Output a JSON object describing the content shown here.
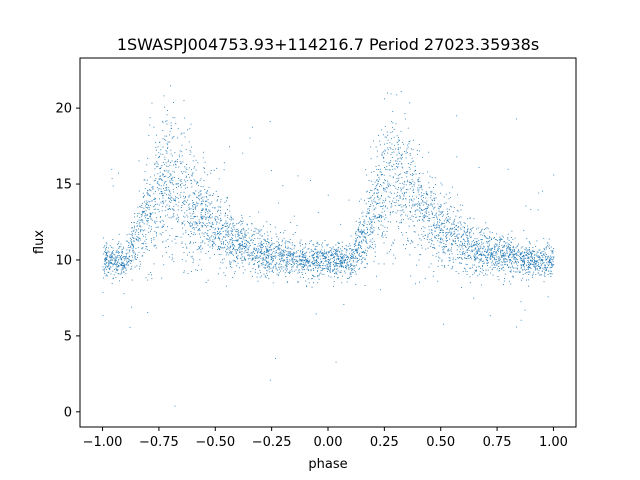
{
  "chart_data": {
    "type": "scatter",
    "title": "1SWASPJ004753.93+114216.7 Period 27023.35938s",
    "xlabel": "phase",
    "ylabel": "flux",
    "xlim": [
      -1.1,
      1.1
    ],
    "ylim": [
      -1.0,
      23.3
    ],
    "xticks": [
      -1.0,
      -0.75,
      -0.5,
      -0.25,
      0.0,
      0.25,
      0.5,
      0.75,
      1.0
    ],
    "xtick_labels": [
      "−1.00",
      "−0.75",
      "−0.50",
      "−0.25",
      "0.00",
      "0.25",
      "0.50",
      "0.75",
      "1.00"
    ],
    "yticks": [
      0,
      5,
      10,
      15,
      20
    ],
    "ytick_labels": [
      "0",
      "5",
      "10",
      "15",
      "20"
    ],
    "grid": false,
    "legend": "none",
    "point_color": "#1f77b4",
    "series": [
      {
        "description_points": "phase-folded light curve, repeated over phase -1 to 1",
        "phase_profile": [
          {
            "phase": -1.0,
            "flux": 10.0
          },
          {
            "phase": -0.9,
            "flux": 10.0
          },
          {
            "phase": -0.82,
            "flux": 12.5
          },
          {
            "phase": -0.72,
            "flux": 15.5
          },
          {
            "phase": -0.6,
            "flux": 13.5
          },
          {
            "phase": -0.45,
            "flux": 11.5
          },
          {
            "phase": -0.3,
            "flux": 10.5
          },
          {
            "phase": -0.1,
            "flux": 10.0
          },
          {
            "phase": 0.1,
            "flux": 10.0
          },
          {
            "phase": 0.18,
            "flux": 12.5
          },
          {
            "phase": 0.28,
            "flux": 15.5
          },
          {
            "phase": 0.4,
            "flux": 13.5
          },
          {
            "phase": 0.55,
            "flux": 11.5
          },
          {
            "phase": 0.7,
            "flux": 10.5
          },
          {
            "phase": 0.9,
            "flux": 10.0
          },
          {
            "phase": 1.0,
            "flux": 10.0
          }
        ]
      }
    ]
  }
}
